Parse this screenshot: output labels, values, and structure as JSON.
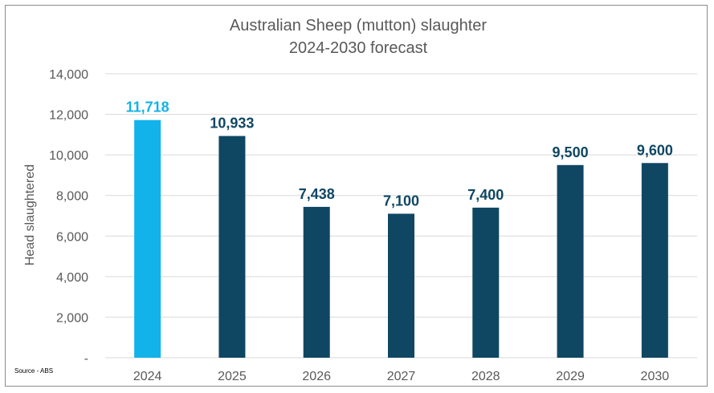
{
  "chart_data": {
    "type": "bar",
    "title": "Australian Sheep (mutton) slaughter",
    "subtitle": "2024-2030 forecast",
    "categories": [
      "2024",
      "2025",
      "2026",
      "2027",
      "2028",
      "2029",
      "2030"
    ],
    "values": [
      11718,
      10933,
      7438,
      7100,
      7400,
      9500,
      9600
    ],
    "value_labels": [
      "11,718",
      "10,933",
      "7,438",
      "7,100",
      "7,400",
      "9,500",
      "9,600"
    ],
    "xlabel": "",
    "ylabel": "Head slaughtered",
    "ylim": [
      0,
      14000
    ],
    "yticks": [
      0,
      2000,
      4000,
      6000,
      8000,
      10000,
      12000,
      14000
    ],
    "ytick_labels": [
      "-",
      "2,000",
      "4,000",
      "6,000",
      "8,000",
      "10,000",
      "12,000",
      "14,000"
    ],
    "grid": true,
    "colors": {
      "highlight": "#12b2ea",
      "bar": "#0f4763",
      "grid": "#d9d9d9",
      "text": "#595959"
    },
    "source": "Source - ABS"
  }
}
